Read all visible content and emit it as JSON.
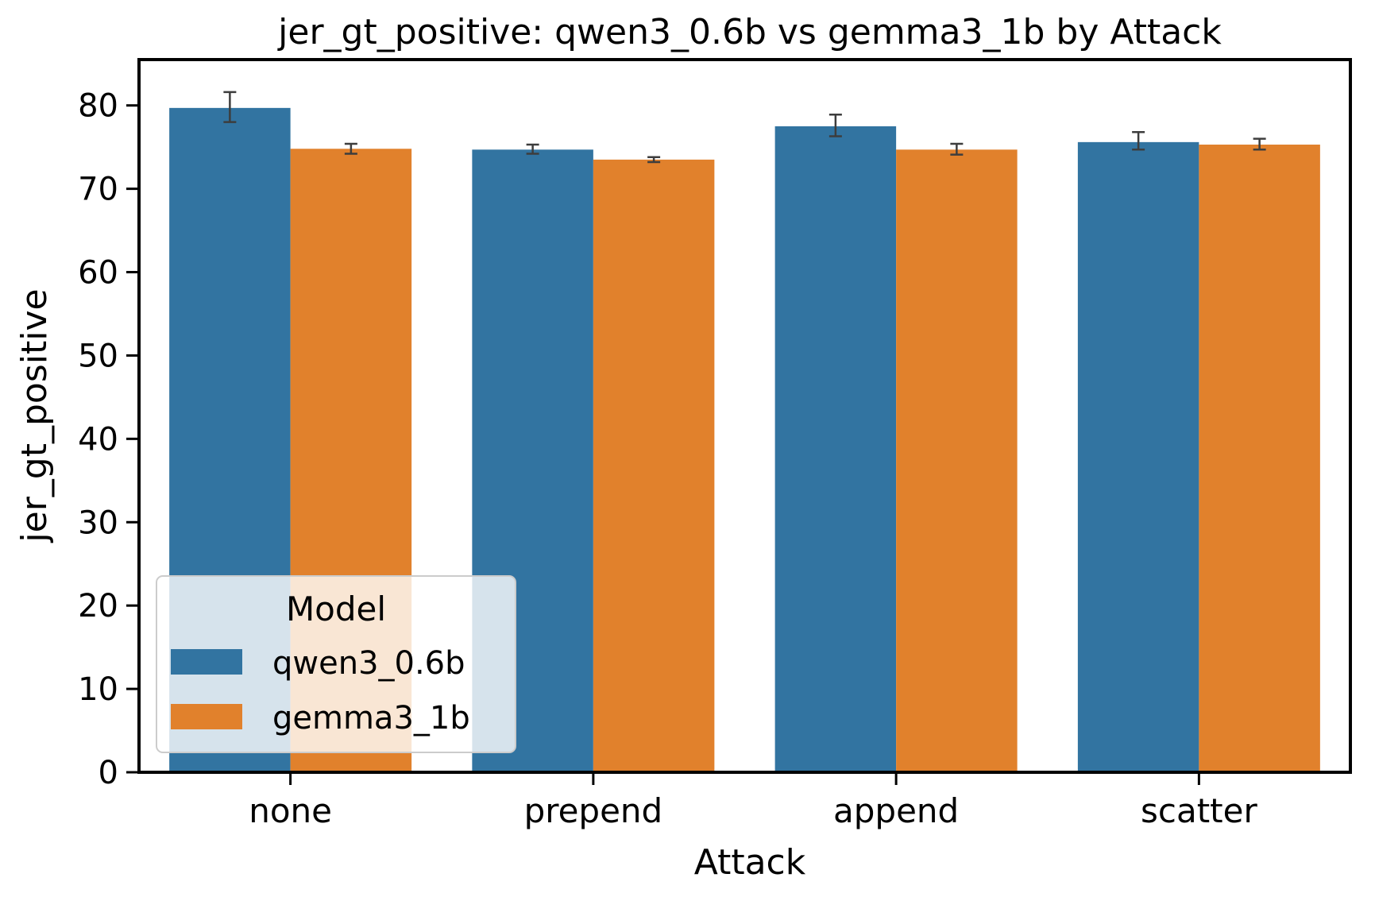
{
  "chart_data": {
    "type": "bar",
    "title": "jer_gt_positive: qwen3_0.6b vs gemma3_1b by Attack",
    "xlabel": "Attack",
    "ylabel": "jer_gt_positive",
    "categories": [
      "none",
      "prepend",
      "append",
      "scatter"
    ],
    "ylim": [
      0,
      85.5
    ],
    "yticks": [
      0,
      10,
      20,
      30,
      40,
      50,
      60,
      70,
      80
    ],
    "grid": false,
    "series": [
      {
        "name": "qwen3_0.6b",
        "color": "#3274a1",
        "values": [
          79.7,
          74.7,
          77.5,
          75.6
        ],
        "err_low": [
          78.0,
          74.2,
          76.3,
          74.7
        ],
        "err_high": [
          81.6,
          75.3,
          78.9,
          76.8
        ]
      },
      {
        "name": "gemma3_1b",
        "color": "#e1812c",
        "values": [
          74.8,
          73.5,
          74.7,
          75.3
        ],
        "err_low": [
          74.2,
          73.2,
          74.1,
          74.7
        ],
        "err_high": [
          75.4,
          73.8,
          75.4,
          76.0
        ]
      }
    ],
    "legend": {
      "title": "Model",
      "position": "lower-left"
    }
  }
}
